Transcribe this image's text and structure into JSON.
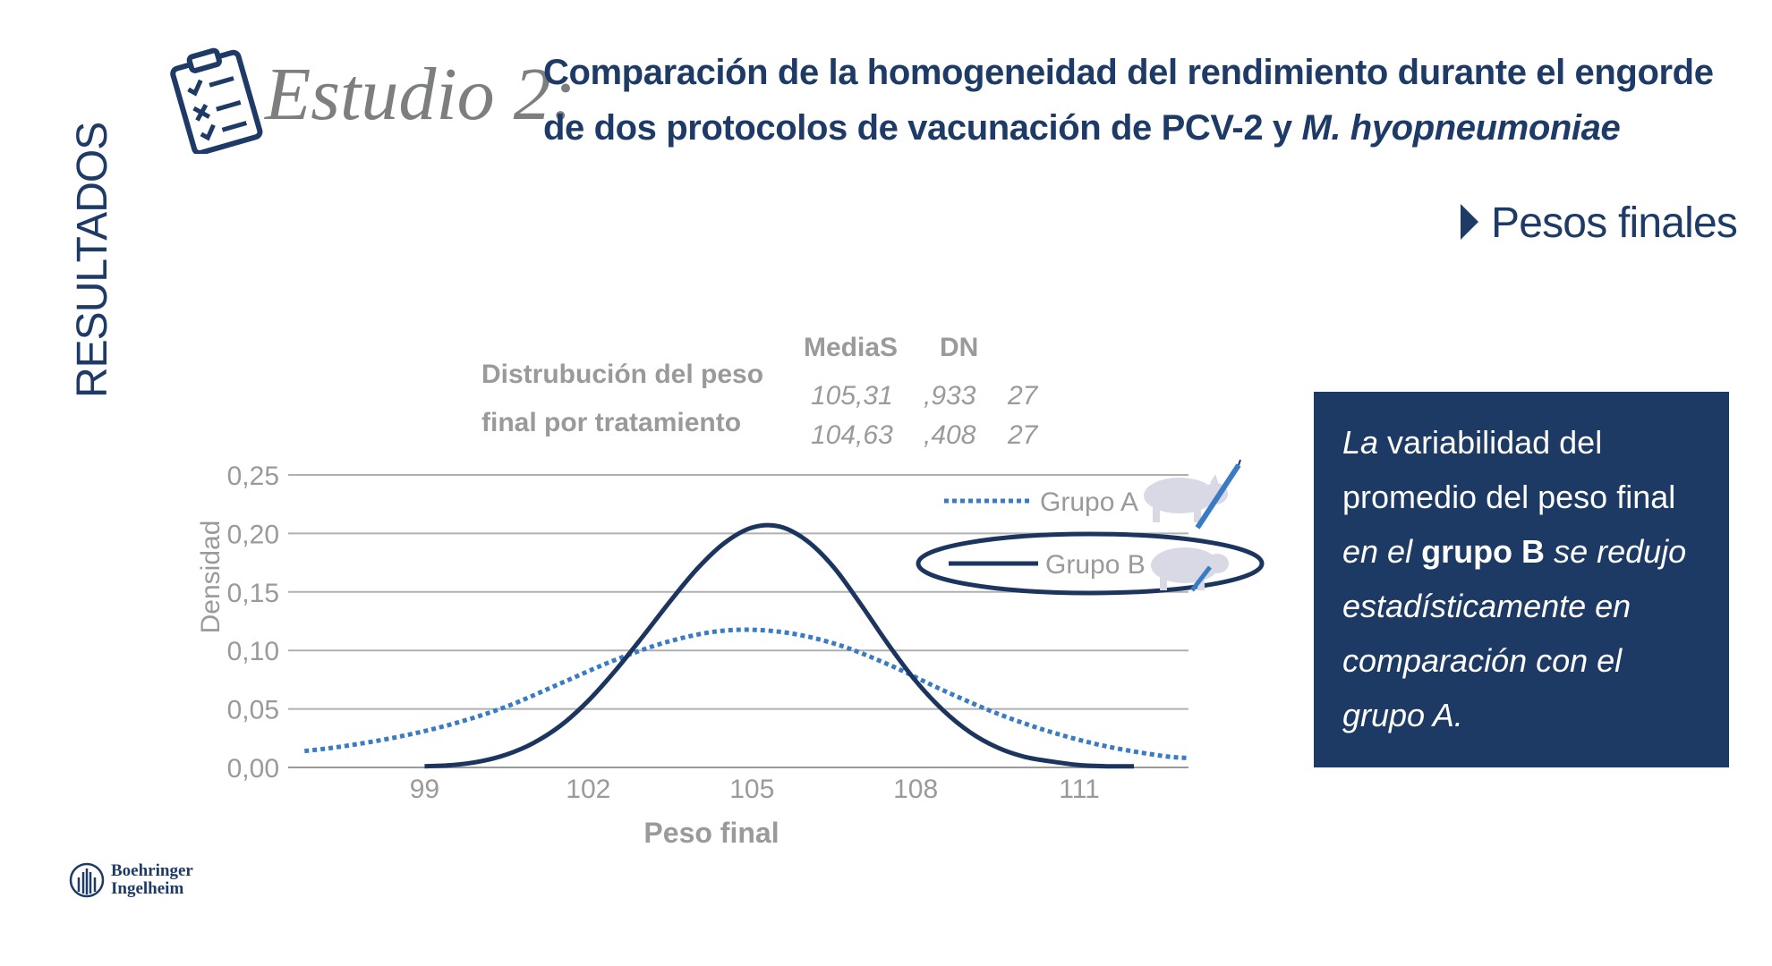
{
  "header": {
    "study_label": "Estudio 2:",
    "title_line1": "Comparación de la homogeneidad del rendimiento durante el engorde",
    "title_line2_prefix": "de dos protocolos de vacunación de PCV-2 y ",
    "title_line2_italic": "M. hyopneumoniae"
  },
  "side_label": "RESULTADOS",
  "section_label": "Pesos finales",
  "stats": {
    "title_line1": "Distrubución del peso",
    "title_line2": "final por tratamiento",
    "col1_header": "MediaS",
    "col2_header": "DN",
    "rows": [
      {
        "media": "105,31",
        "sd": ",933",
        "n": "27"
      },
      {
        "media": "104,63",
        "sd": ",408",
        "n": "27"
      }
    ]
  },
  "info_box": {
    "part1_italic": "La",
    "part2": " variabilidad del promedio del peso final",
    "part3_italic": " en el ",
    "part4_bold": "grupo B",
    "part5_italic": " se redujo estadísticamente en comparación con el grupo A."
  },
  "brand": {
    "line1": "Boehringer",
    "line2": "Ingelheim"
  },
  "colors": {
    "navy": "#1e3a66",
    "group_a": "#3a7cc4",
    "group_b": "#1c355e",
    "grid": "#9a9a9a",
    "box": "#1c3a63"
  },
  "icons": [
    "clipboard-checklist-icon",
    "pig-icon",
    "syringe-icon",
    "boehringer-logo-icon"
  ],
  "chart_data": {
    "type": "line",
    "xlabel": "Peso final",
    "ylabel": "Densidad",
    "x_ticks": [
      "99",
      "102",
      "105",
      "108",
      "111"
    ],
    "y_ticks": [
      "0,00",
      "0,05",
      "0,10",
      "0,15",
      "0,20",
      "0,25"
    ],
    "xlim": [
      96.5,
      113.0
    ],
    "ylim": [
      0,
      0.25
    ],
    "grid": true,
    "legend_position": "top-right",
    "series": [
      {
        "name": "Grupo A",
        "style": "dotted",
        "color": "#3a7cc4",
        "x": [
          96.8,
          97.5,
          98.5,
          99.5,
          100.5,
          101.5,
          102.5,
          103.5,
          104.5,
          105.5,
          106.5,
          107.5,
          108.5,
          109.5,
          110.5,
          111.5,
          112.5,
          113.0
        ],
        "y": [
          0.014,
          0.018,
          0.026,
          0.037,
          0.052,
          0.072,
          0.092,
          0.108,
          0.117,
          0.116,
          0.106,
          0.088,
          0.066,
          0.046,
          0.03,
          0.018,
          0.01,
          0.008
        ]
      },
      {
        "name": "Grupo B",
        "style": "solid",
        "color": "#1c355e",
        "x": [
          99.0,
          99.5,
          100.0,
          100.5,
          101.0,
          101.5,
          102.0,
          102.5,
          103.0,
          103.5,
          104.0,
          104.5,
          105.0,
          105.5,
          106.0,
          106.5,
          107.0,
          107.5,
          108.0,
          108.5,
          109.0,
          109.5,
          110.0,
          110.5,
          111.0,
          111.5,
          112.0
        ],
        "y": [
          0.001,
          0.002,
          0.005,
          0.011,
          0.021,
          0.036,
          0.057,
          0.083,
          0.112,
          0.142,
          0.17,
          0.192,
          0.205,
          0.206,
          0.194,
          0.171,
          0.139,
          0.105,
          0.074,
          0.049,
          0.03,
          0.017,
          0.009,
          0.005,
          0.002,
          0.001,
          0.001
        ]
      }
    ]
  }
}
